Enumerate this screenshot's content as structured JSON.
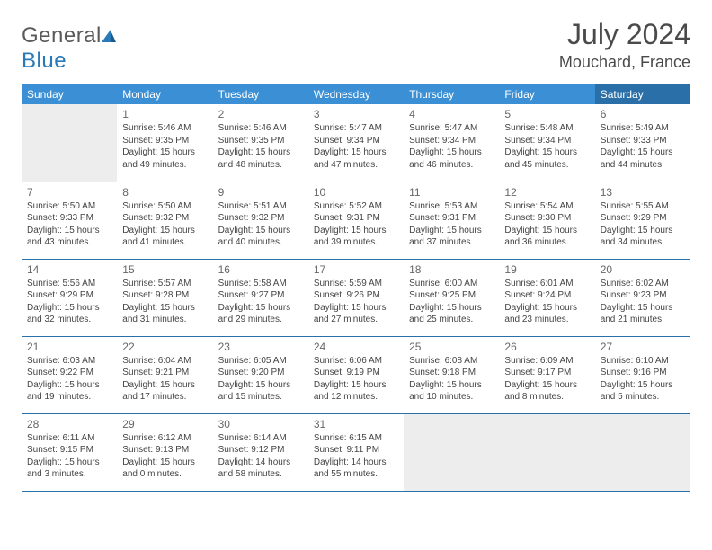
{
  "brand": {
    "part1": "General",
    "part2": "Blue"
  },
  "title": "July 2024",
  "location": "Mouchard, France",
  "colors": {
    "header_bg": "#3b8fd4",
    "header_bg_sat": "#2a6fa8",
    "header_fg": "#ffffff",
    "border": "#2a6fa8",
    "empty_bg": "#ededed",
    "text": "#444444",
    "daynum": "#666666"
  },
  "typography": {
    "title_fontsize": 32,
    "location_fontsize": 18,
    "dayheader_fontsize": 12,
    "cell_fontsize": 10
  },
  "day_headers": [
    "Sunday",
    "Monday",
    "Tuesday",
    "Wednesday",
    "Thursday",
    "Friday",
    "Saturday"
  ],
  "weeks": [
    [
      null,
      {
        "n": "1",
        "sr": "5:46 AM",
        "ss": "9:35 PM",
        "dl": "15 hours and 49 minutes."
      },
      {
        "n": "2",
        "sr": "5:46 AM",
        "ss": "9:35 PM",
        "dl": "15 hours and 48 minutes."
      },
      {
        "n": "3",
        "sr": "5:47 AM",
        "ss": "9:34 PM",
        "dl": "15 hours and 47 minutes."
      },
      {
        "n": "4",
        "sr": "5:47 AM",
        "ss": "9:34 PM",
        "dl": "15 hours and 46 minutes."
      },
      {
        "n": "5",
        "sr": "5:48 AM",
        "ss": "9:34 PM",
        "dl": "15 hours and 45 minutes."
      },
      {
        "n": "6",
        "sr": "5:49 AM",
        "ss": "9:33 PM",
        "dl": "15 hours and 44 minutes."
      }
    ],
    [
      {
        "n": "7",
        "sr": "5:50 AM",
        "ss": "9:33 PM",
        "dl": "15 hours and 43 minutes."
      },
      {
        "n": "8",
        "sr": "5:50 AM",
        "ss": "9:32 PM",
        "dl": "15 hours and 41 minutes."
      },
      {
        "n": "9",
        "sr": "5:51 AM",
        "ss": "9:32 PM",
        "dl": "15 hours and 40 minutes."
      },
      {
        "n": "10",
        "sr": "5:52 AM",
        "ss": "9:31 PM",
        "dl": "15 hours and 39 minutes."
      },
      {
        "n": "11",
        "sr": "5:53 AM",
        "ss": "9:31 PM",
        "dl": "15 hours and 37 minutes."
      },
      {
        "n": "12",
        "sr": "5:54 AM",
        "ss": "9:30 PM",
        "dl": "15 hours and 36 minutes."
      },
      {
        "n": "13",
        "sr": "5:55 AM",
        "ss": "9:29 PM",
        "dl": "15 hours and 34 minutes."
      }
    ],
    [
      {
        "n": "14",
        "sr": "5:56 AM",
        "ss": "9:29 PM",
        "dl": "15 hours and 32 minutes."
      },
      {
        "n": "15",
        "sr": "5:57 AM",
        "ss": "9:28 PM",
        "dl": "15 hours and 31 minutes."
      },
      {
        "n": "16",
        "sr": "5:58 AM",
        "ss": "9:27 PM",
        "dl": "15 hours and 29 minutes."
      },
      {
        "n": "17",
        "sr": "5:59 AM",
        "ss": "9:26 PM",
        "dl": "15 hours and 27 minutes."
      },
      {
        "n": "18",
        "sr": "6:00 AM",
        "ss": "9:25 PM",
        "dl": "15 hours and 25 minutes."
      },
      {
        "n": "19",
        "sr": "6:01 AM",
        "ss": "9:24 PM",
        "dl": "15 hours and 23 minutes."
      },
      {
        "n": "20",
        "sr": "6:02 AM",
        "ss": "9:23 PM",
        "dl": "15 hours and 21 minutes."
      }
    ],
    [
      {
        "n": "21",
        "sr": "6:03 AM",
        "ss": "9:22 PM",
        "dl": "15 hours and 19 minutes."
      },
      {
        "n": "22",
        "sr": "6:04 AM",
        "ss": "9:21 PM",
        "dl": "15 hours and 17 minutes."
      },
      {
        "n": "23",
        "sr": "6:05 AM",
        "ss": "9:20 PM",
        "dl": "15 hours and 15 minutes."
      },
      {
        "n": "24",
        "sr": "6:06 AM",
        "ss": "9:19 PM",
        "dl": "15 hours and 12 minutes."
      },
      {
        "n": "25",
        "sr": "6:08 AM",
        "ss": "9:18 PM",
        "dl": "15 hours and 10 minutes."
      },
      {
        "n": "26",
        "sr": "6:09 AM",
        "ss": "9:17 PM",
        "dl": "15 hours and 8 minutes."
      },
      {
        "n": "27",
        "sr": "6:10 AM",
        "ss": "9:16 PM",
        "dl": "15 hours and 5 minutes."
      }
    ],
    [
      {
        "n": "28",
        "sr": "6:11 AM",
        "ss": "9:15 PM",
        "dl": "15 hours and 3 minutes."
      },
      {
        "n": "29",
        "sr": "6:12 AM",
        "ss": "9:13 PM",
        "dl": "15 hours and 0 minutes."
      },
      {
        "n": "30",
        "sr": "6:14 AM",
        "ss": "9:12 PM",
        "dl": "14 hours and 58 minutes."
      },
      {
        "n": "31",
        "sr": "6:15 AM",
        "ss": "9:11 PM",
        "dl": "14 hours and 55 minutes."
      },
      null,
      null,
      null
    ]
  ],
  "labels": {
    "sunrise": "Sunrise:",
    "sunset": "Sunset:",
    "daylight": "Daylight:"
  }
}
